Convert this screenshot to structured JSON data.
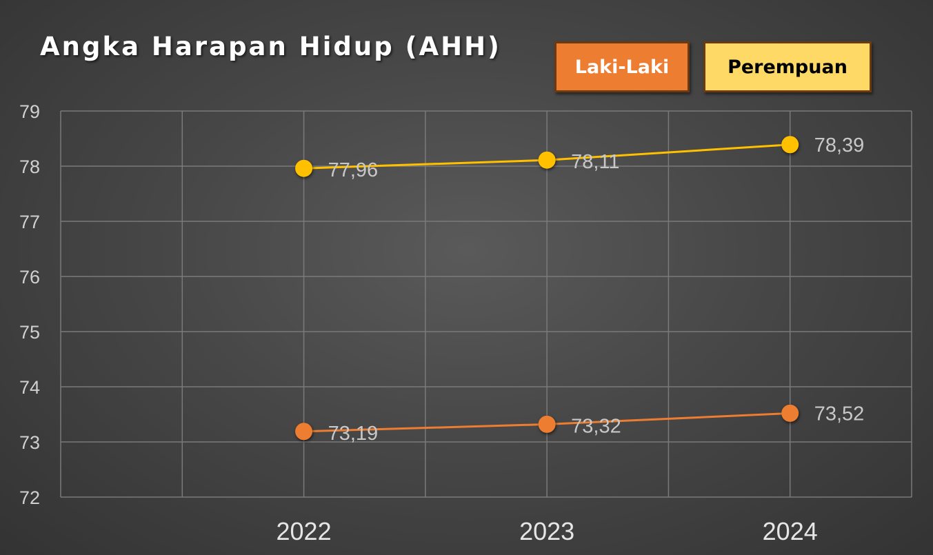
{
  "chart_data": {
    "type": "line",
    "title": "Angka Harapan Hidup (AHH)",
    "categories": [
      "2022",
      "2023",
      "2024"
    ],
    "ylim": [
      72,
      79
    ],
    "yticks": [
      "72",
      "73",
      "74",
      "75",
      "76",
      "77",
      "78",
      "79"
    ],
    "grid": true,
    "legend_position": "top-right",
    "series": [
      {
        "name": "Laki-Laki",
        "color": "#ED7D31",
        "values": [
          73.19,
          73.32,
          73.52
        ],
        "labels": [
          "73,19",
          "73,32",
          "73,52"
        ]
      },
      {
        "name": "Perempuan",
        "color": "#FFC000",
        "legend_color": "#FFD966",
        "values": [
          77.96,
          78.11,
          78.39
        ],
        "labels": [
          "77,96",
          "78,11",
          "78,39"
        ]
      }
    ]
  }
}
